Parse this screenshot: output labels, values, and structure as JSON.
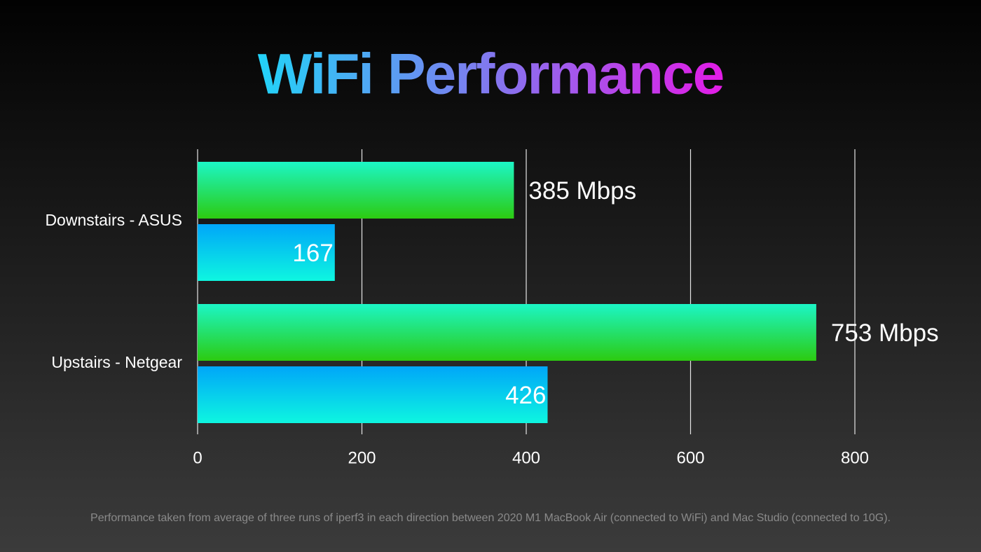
{
  "chart_data": {
    "type": "bar",
    "orientation": "horizontal",
    "title": "WiFi Performance",
    "title_colors": [
      "#22d3f8",
      "#e21ce6"
    ],
    "categories": [
      "Downstairs - ASUS",
      "Upstairs - Netgear"
    ],
    "series": [
      {
        "color": [
          "#1cf6c6",
          "#2ccb10"
        ],
        "values": [
          385,
          753
        ],
        "value_labels": [
          "385 Mbps",
          "753 Mbps"
        ]
      },
      {
        "color": [
          "#00a6f9",
          "#0ef6e0"
        ],
        "values": [
          167,
          426
        ],
        "value_labels": [
          "167",
          "426"
        ]
      }
    ],
    "xlim": [
      0,
      800
    ],
    "xticks": [
      0,
      200,
      400,
      600,
      800
    ],
    "grid": true,
    "footnote": "Performance taken from average of three runs of iperf3 in each direction between 2020 M1 MacBook Air (connected to WiFi) and Mac Studio (connected to 10G)."
  }
}
